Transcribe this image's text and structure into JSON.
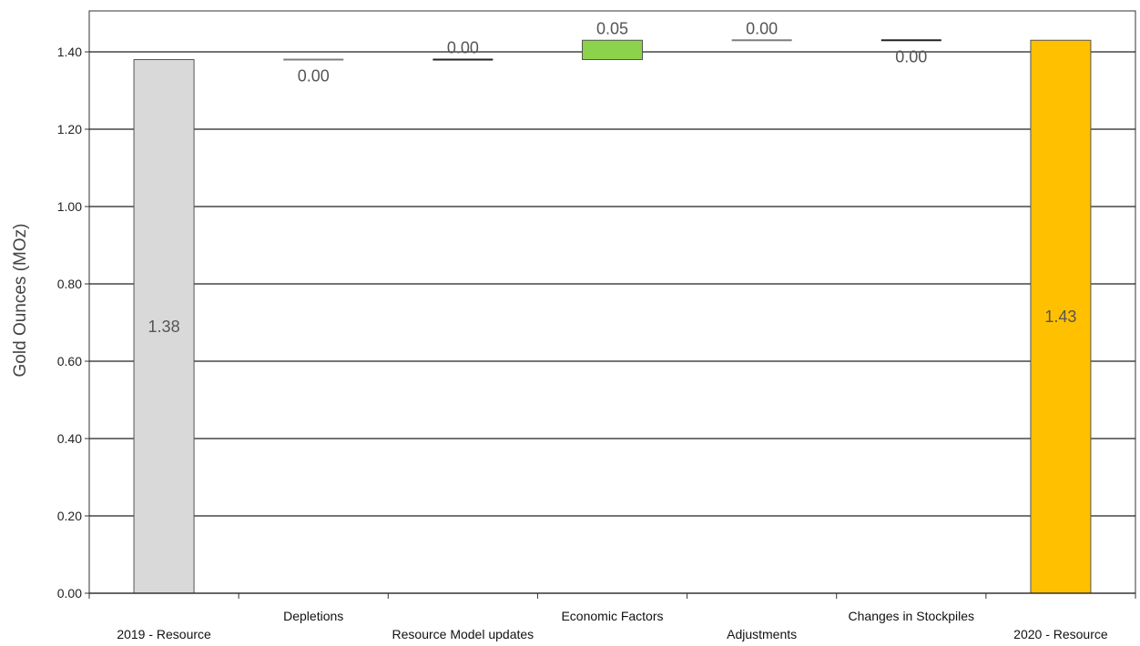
{
  "chart_data": {
    "type": "waterfall",
    "ylabel": "Gold Ounces (MOz)",
    "ylim": [
      0,
      1.5
    ],
    "yticks": [
      "0.00",
      "0.20",
      "0.40",
      "0.60",
      "0.80",
      "1.00",
      "1.20",
      "1.40"
    ],
    "grid": true,
    "legend": "none",
    "categories": [
      "2019 - Resource",
      "Depletions",
      "Resource Model updates",
      "Economic Factors",
      "Adjustments",
      "Changes in Stockpiles",
      "2020 - Resource"
    ],
    "steps": [
      {
        "category": "2019 - Resource",
        "kind": "total",
        "value": 1.38,
        "label": "1.38",
        "color": "#d9d9d9"
      },
      {
        "category": "Depletions",
        "kind": "delta",
        "value": 0.0,
        "label": "0.00",
        "color": "#7f7f7f"
      },
      {
        "category": "Resource Model updates",
        "kind": "delta",
        "value": 0.0,
        "label": "0.00",
        "color": "#222222"
      },
      {
        "category": "Economic Factors",
        "kind": "delta",
        "value": 0.05,
        "label": "0.05",
        "color": "#8cd24a"
      },
      {
        "category": "Adjustments",
        "kind": "delta",
        "value": 0.0,
        "label": "0.00",
        "color": "#7f7f7f"
      },
      {
        "category": "Changes in Stockpiles",
        "kind": "delta",
        "value": 0.0,
        "label": "0.00",
        "color": "#222222"
      },
      {
        "category": "2020 - Resource",
        "kind": "total",
        "value": 1.43,
        "label": "1.43",
        "color": "#ffc000"
      }
    ]
  }
}
